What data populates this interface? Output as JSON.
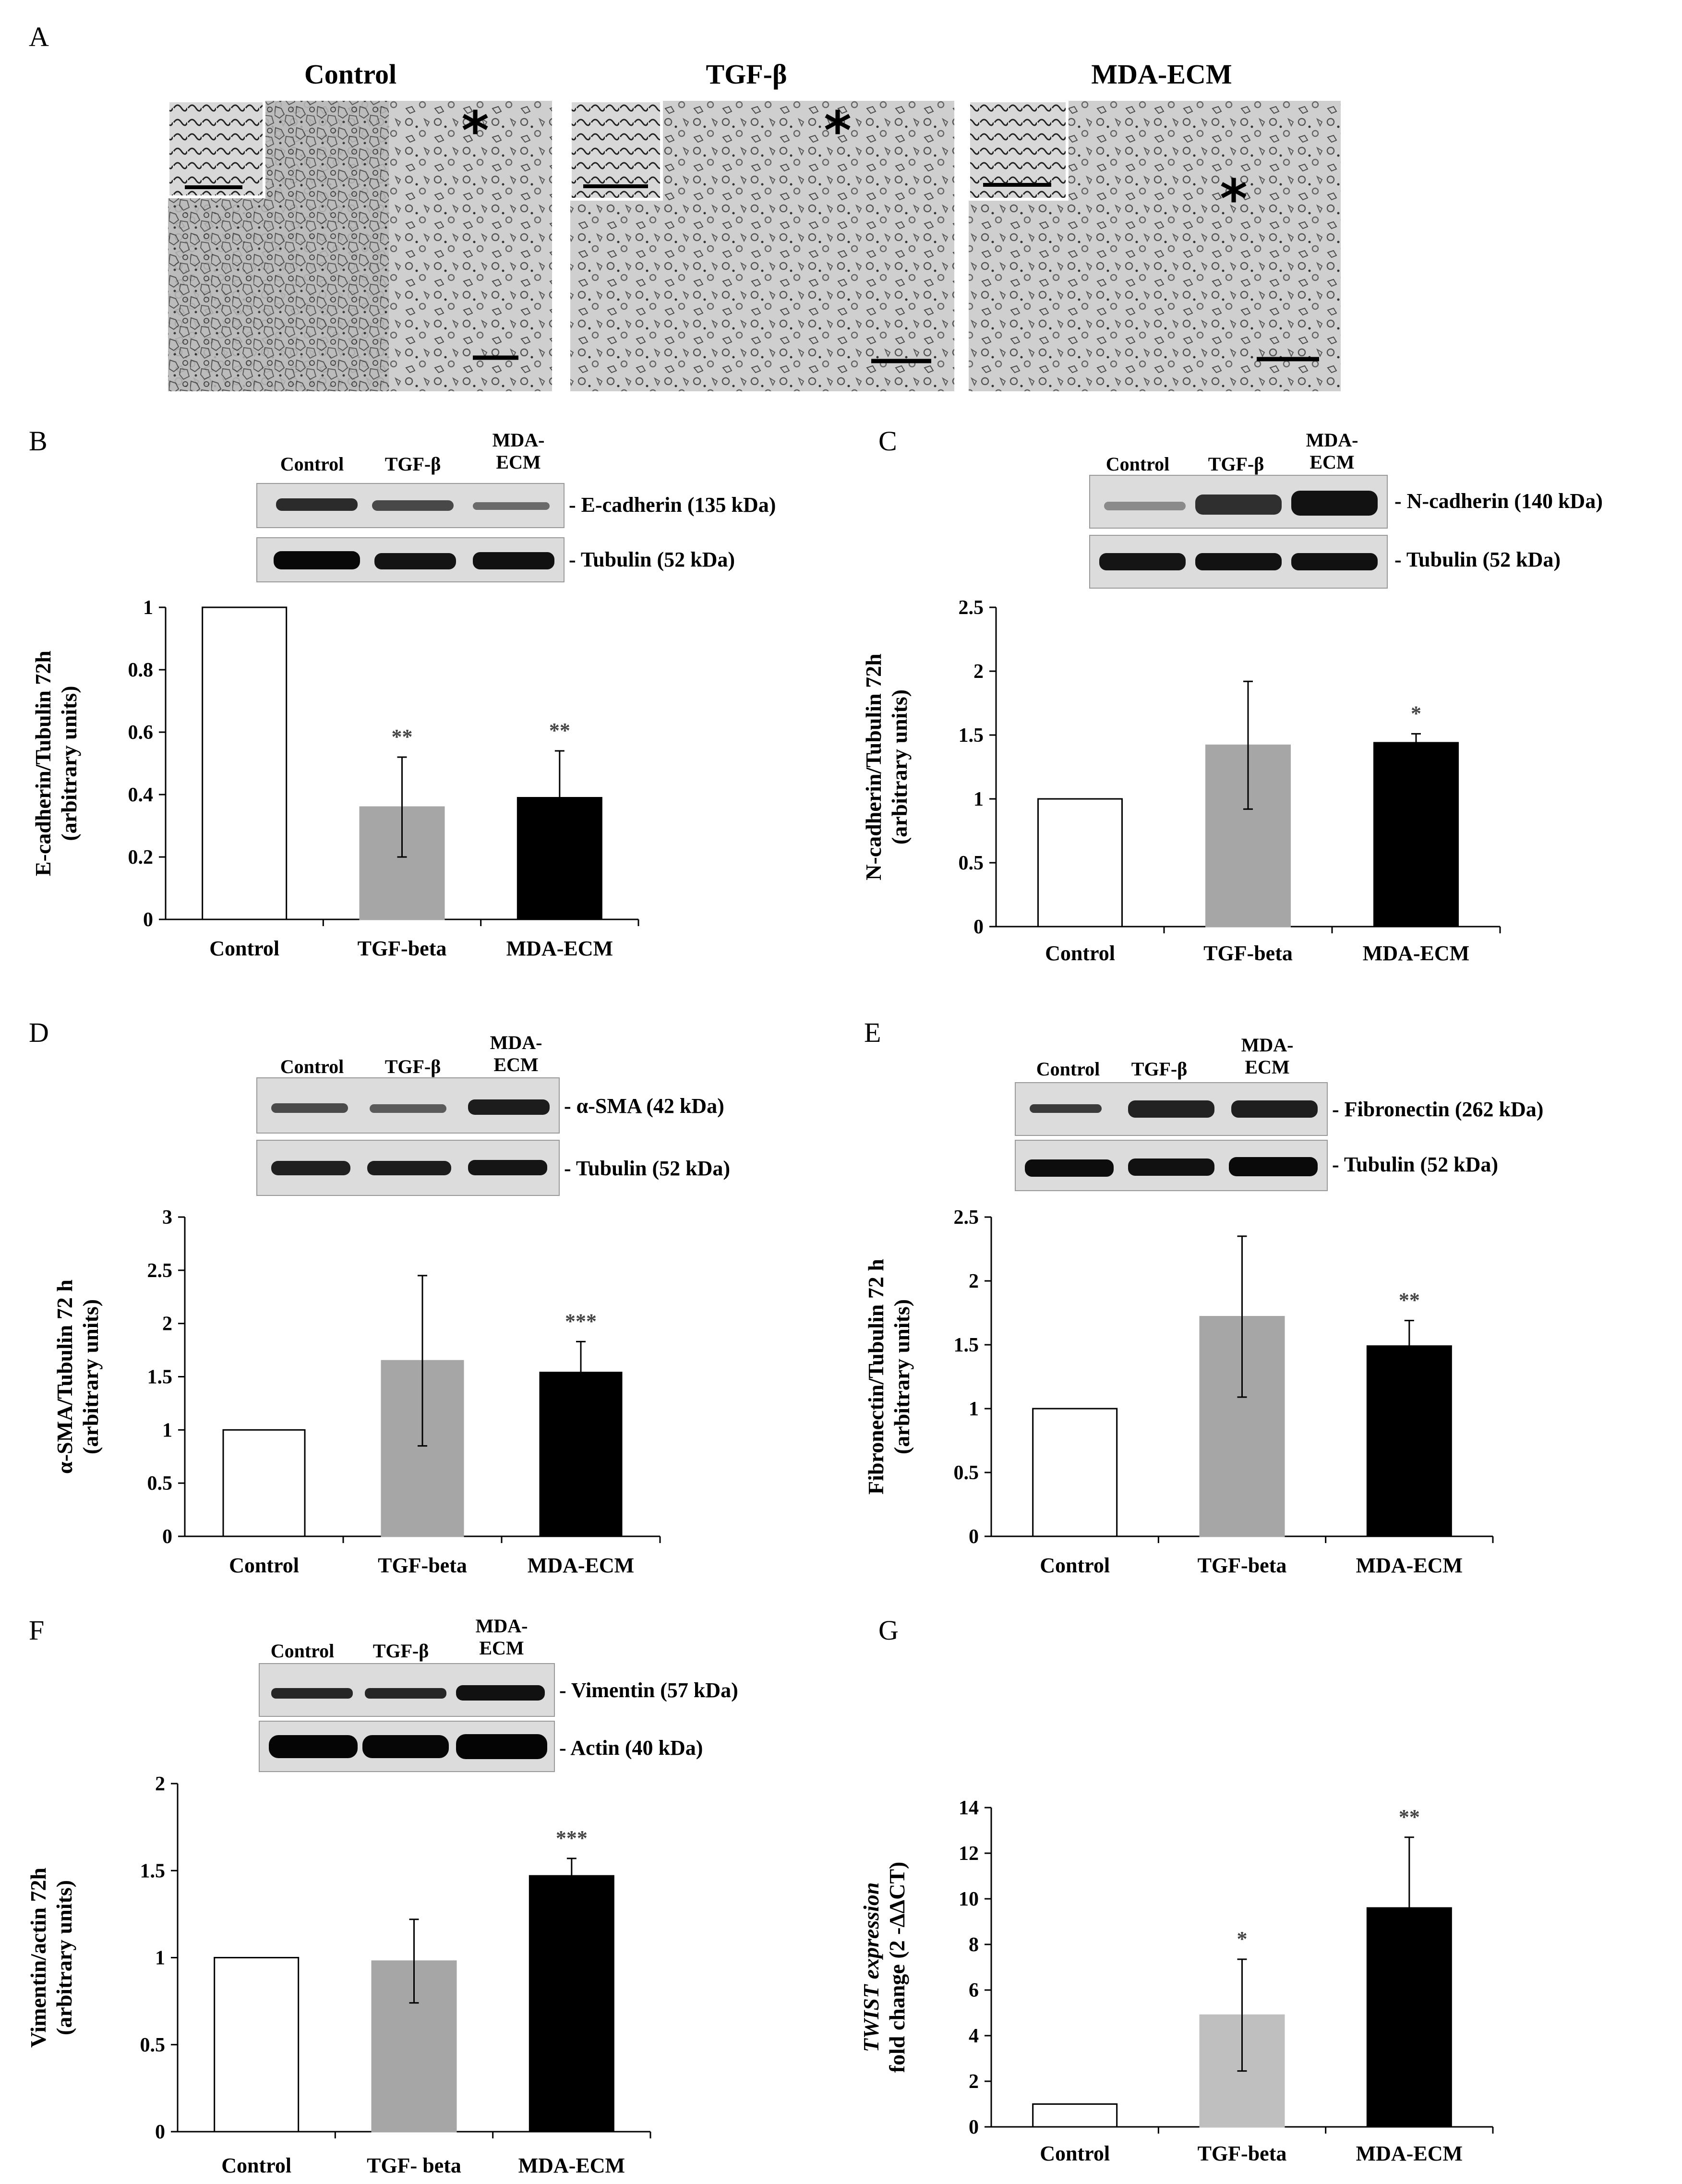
{
  "figure": {
    "panel_A": {
      "label": "A",
      "micrographs": [
        {
          "title": "Control",
          "marker": "*"
        },
        {
          "title": "TGF-β",
          "marker": "*"
        },
        {
          "title": "MDA-ECM",
          "marker": "*"
        }
      ]
    },
    "blot_B": {
      "lanes": [
        "Control",
        "TGF-β",
        "MDA-\nECM"
      ],
      "bands": [
        "- E-cadherin (135 kDa)",
        "- Tubulin (52 kDa)"
      ]
    },
    "blot_C": {
      "lanes": [
        "Control",
        "TGF-β",
        "MDA-\nECM"
      ],
      "bands": [
        "- N-cadherin (140 kDa)",
        "- Tubulin (52 kDa)"
      ]
    },
    "blot_D": {
      "lanes": [
        "Control",
        "TGF-β",
        "MDA-\nECM"
      ],
      "bands": [
        "- α-SMA (42 kDa)",
        "- Tubulin (52 kDa)"
      ]
    },
    "blot_E": {
      "lanes": [
        "Control",
        "TGF-β",
        "MDA-\nECM"
      ],
      "bands": [
        "- Fibronectin (262 kDa)",
        "- Tubulin (52 kDa)"
      ]
    },
    "blot_F": {
      "lanes": [
        "Control",
        "TGF-β",
        "MDA-\nECM"
      ],
      "bands": [
        "- Vimentin (57 kDa)",
        "- Actin (40 kDa)"
      ]
    }
  },
  "chart_data": [
    {
      "id": "B",
      "type": "bar",
      "categories": [
        "Control",
        "TGF-beta",
        "MDA-ECM"
      ],
      "values": [
        1.0,
        0.36,
        0.39
      ],
      "errors": [
        0,
        0.16,
        0.15
      ],
      "significance": [
        "",
        "**",
        "**"
      ],
      "ylabel": [
        "E-cadherin/Tubulin 72h",
        "(arbitrary units)"
      ],
      "ylim": [
        0,
        1
      ],
      "yticks": [
        "0",
        "0.2",
        "0.4",
        "0.6",
        "0.8",
        "1"
      ],
      "bar_colors": [
        "#ffffff",
        "#a6a6a6",
        "#000000"
      ]
    },
    {
      "id": "C",
      "type": "bar",
      "categories": [
        "Control",
        "TGF-beta",
        "MDA-ECM"
      ],
      "values": [
        1.0,
        1.42,
        1.44
      ],
      "errors": [
        0,
        0.5,
        0.07
      ],
      "significance": [
        "",
        "",
        "*"
      ],
      "ylabel": [
        "N-cadherin/Tubulin 72h",
        "(arbitrary units)"
      ],
      "ylim": [
        0,
        2.5
      ],
      "yticks": [
        "0",
        "0.5",
        "1",
        "1.5",
        "2",
        "2.5"
      ],
      "bar_colors": [
        "#ffffff",
        "#a6a6a6",
        "#000000"
      ]
    },
    {
      "id": "D",
      "type": "bar",
      "categories": [
        "Control",
        "TGF-beta",
        "MDA-ECM"
      ],
      "values": [
        1.0,
        1.65,
        1.54
      ],
      "errors": [
        0,
        0.8,
        0.29
      ],
      "significance": [
        "",
        "",
        "***"
      ],
      "ylabel": [
        "α-SMA/Tubulin 72 h",
        "(arbitrary units)"
      ],
      "ylim": [
        0,
        3
      ],
      "yticks": [
        "0",
        "0.5",
        "1",
        "1.5",
        "2",
        "2.5",
        "3"
      ],
      "bar_colors": [
        "#ffffff",
        "#a6a6a6",
        "#000000"
      ]
    },
    {
      "id": "E",
      "type": "bar",
      "categories": [
        "Control",
        "TGF-beta",
        "MDA-ECM"
      ],
      "values": [
        1.0,
        1.72,
        1.49
      ],
      "errors": [
        0,
        0.63,
        0.2
      ],
      "significance": [
        "",
        "",
        "**"
      ],
      "ylabel": [
        "Fibronectin/Tubulin 72 h",
        "(arbitrary units)"
      ],
      "ylim": [
        0,
        2.5
      ],
      "yticks": [
        "0",
        "0.5",
        "1",
        "1.5",
        "2",
        "2.5"
      ],
      "bar_colors": [
        "#ffffff",
        "#a6a6a6",
        "#000000"
      ]
    },
    {
      "id": "F",
      "type": "bar",
      "categories": [
        "Control",
        "TGF- beta",
        "MDA-ECM"
      ],
      "values": [
        1.0,
        0.98,
        1.47
      ],
      "errors": [
        0,
        0.24,
        0.1
      ],
      "significance": [
        "",
        "",
        "***"
      ],
      "ylabel": [
        "Vimentin/actin 72h",
        "(arbitrary units)"
      ],
      "ylim": [
        0,
        2
      ],
      "yticks": [
        "0",
        "0.5",
        "1",
        "1.5",
        "2"
      ],
      "bar_colors": [
        "#ffffff",
        "#a6a6a6",
        "#000000"
      ]
    },
    {
      "id": "G",
      "type": "bar",
      "categories": [
        "Control",
        "TGF-beta",
        "MDA-ECM"
      ],
      "values": [
        1.0,
        4.9,
        9.6
      ],
      "errors": [
        0,
        2.45,
        3.1
      ],
      "significance": [
        "",
        "*",
        "**"
      ],
      "ylabel": [
        "TWIST expression",
        "fold change (2 -ΔΔCT)"
      ],
      "ylim": [
        0,
        14
      ],
      "yticks": [
        "0",
        "2",
        "4",
        "6",
        "8",
        "10",
        "12",
        "14"
      ],
      "bar_colors": [
        "#ffffff",
        "#bfbfbf",
        "#000000"
      ]
    }
  ]
}
